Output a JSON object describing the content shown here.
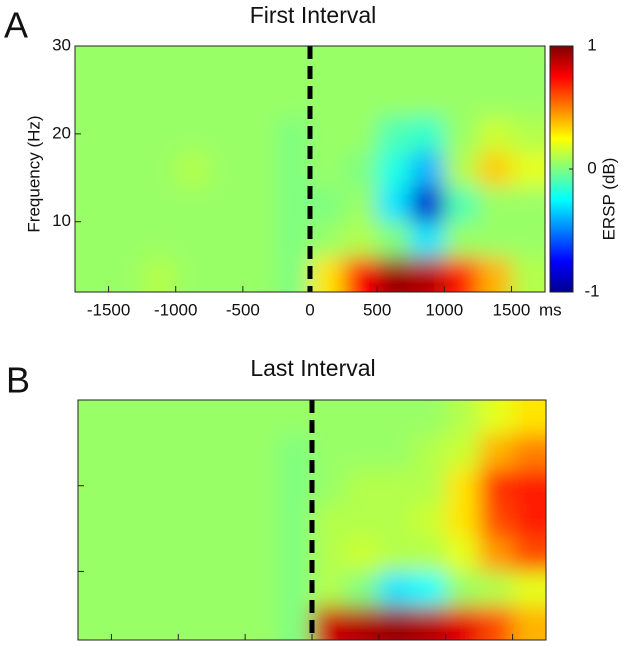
{
  "chart_data": [
    {
      "type": "heatmap",
      "panel_label": "A",
      "title": "First Interval",
      "y_label": "Frequency (Hz)",
      "x_unit": "ms",
      "tick_labels": true,
      "x_bins": [
        -1750,
        -1500,
        -1250,
        -1000,
        -750,
        -500,
        -250,
        0,
        250,
        500,
        750,
        1000,
        1250,
        1500,
        1750
      ],
      "y_bins": [
        2,
        6,
        10,
        14,
        18,
        22,
        26,
        30
      ],
      "z": [
        [
          0.05,
          0.05,
          0.1,
          0.05,
          0.05,
          0.05,
          0,
          0.3,
          0.75,
          0.95,
          0.9,
          0.7,
          0.4,
          0.1
        ],
        [
          0.05,
          0.05,
          0.05,
          0.05,
          0.05,
          0.05,
          0,
          0.05,
          0.1,
          0,
          -0.3,
          0.05,
          0.05,
          0.05
        ],
        [
          0.05,
          0.05,
          0.05,
          0.05,
          0.05,
          0.05,
          0,
          0,
          0.05,
          -0.3,
          -0.85,
          -0.1,
          0.05,
          0.05
        ],
        [
          0.05,
          0.05,
          0.05,
          0.1,
          0.05,
          0.05,
          0,
          0.05,
          0,
          -0.2,
          -0.4,
          0.1,
          0.35,
          0.2
        ],
        [
          0.05,
          0.05,
          0.05,
          0.05,
          0.05,
          0.05,
          0,
          0.05,
          0.05,
          -0.1,
          -0.15,
          0.05,
          0.15,
          0.1
        ],
        [
          0.05,
          0.05,
          0.05,
          0.05,
          0.05,
          0.05,
          0.05,
          0.05,
          0.05,
          0.05,
          0.05,
          0.05,
          0.05,
          0.05
        ],
        [
          0.05,
          0.05,
          0.05,
          0.05,
          0.05,
          0.05,
          0.05,
          0.05,
          0.05,
          0.05,
          0.05,
          0.05,
          0.05,
          0.05
        ]
      ],
      "xlim": [
        -1750,
        1750
      ],
      "ylim": [
        2,
        30
      ],
      "xticks": [
        -1500,
        -1000,
        -500,
        0,
        500,
        1000,
        1500
      ],
      "yticks": [
        10,
        20,
        30
      ],
      "vline": 0,
      "colorbar": {
        "label": "ERSP (dB)",
        "lim": [
          -1,
          1
        ],
        "ticks": [
          -1,
          0,
          1
        ]
      }
    },
    {
      "type": "heatmap",
      "panel_label": "B",
      "title": "Last Interval",
      "tick_labels": false,
      "x_bins": [
        -1750,
        -1500,
        -1250,
        -1000,
        -750,
        -500,
        -250,
        0,
        250,
        500,
        750,
        1000,
        1250,
        1500,
        1750
      ],
      "y_bins": [
        2,
        6,
        10,
        14,
        18,
        22,
        26,
        30
      ],
      "z": [
        [
          0.05,
          0.05,
          0.05,
          0.05,
          0.05,
          0.05,
          0,
          0.85,
          0.9,
          0.95,
          0.9,
          0.8,
          0.6,
          0.4
        ],
        [
          0.05,
          0.05,
          0.05,
          0.05,
          0.05,
          0.05,
          0,
          0.1,
          0,
          -0.3,
          -0.25,
          0.05,
          0.1,
          0.2
        ],
        [
          0.05,
          0.05,
          0.05,
          0.05,
          0.05,
          0.05,
          0,
          0.1,
          0.15,
          0.1,
          0.1,
          0.2,
          0.45,
          0.6
        ],
        [
          0.05,
          0.05,
          0.05,
          0.05,
          0.05,
          0.05,
          0,
          0.1,
          0.1,
          0.1,
          0.15,
          0.3,
          0.6,
          0.7
        ],
        [
          0.05,
          0.05,
          0.05,
          0.05,
          0.05,
          0.05,
          0,
          0.05,
          0.1,
          0.1,
          0.1,
          0.3,
          0.65,
          0.7
        ],
        [
          0.05,
          0.05,
          0.05,
          0.05,
          0.05,
          0.05,
          0,
          0.05,
          0.05,
          0.05,
          0.1,
          0.15,
          0.4,
          0.5
        ],
        [
          0.05,
          0.05,
          0.05,
          0.05,
          0.05,
          0.05,
          0.05,
          0.05,
          0.05,
          0.05,
          0.05,
          0.1,
          0.2,
          0.3
        ]
      ],
      "xlim": [
        -1750,
        1750
      ],
      "ylim": [
        2,
        30
      ],
      "xticks": [
        -1500,
        -1000,
        -500,
        0,
        500,
        1000,
        1500
      ],
      "yticks": [
        10,
        20,
        30
      ],
      "vline": 0
    }
  ]
}
